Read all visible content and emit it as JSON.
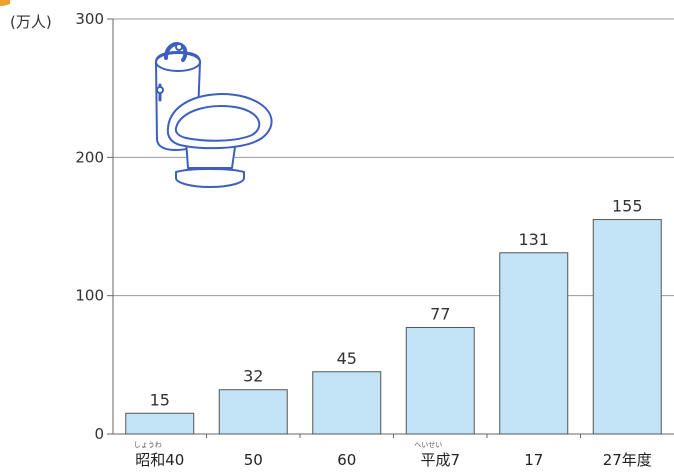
{
  "colors": {
    "bar_fill": "#c3e4f6",
    "bar_stroke": "#555555",
    "grid": "#999999",
    "axis": "#666666",
    "illustration_stroke": "#3d5fbf",
    "accent": "#f0a030"
  },
  "illustration": {
    "icon": "toilet-icon"
  },
  "chart_data": {
    "type": "bar",
    "unit_label": "(万人)",
    "categories": [
      "昭和40",
      "50",
      "60",
      "平成7",
      "17",
      "27年度"
    ],
    "category_ruby": [
      "しょうわ",
      "",
      "",
      "へいせい",
      "",
      ""
    ],
    "values": [
      15,
      32,
      45,
      77,
      131,
      155
    ],
    "value_labels": [
      "15",
      "32",
      "45",
      "77",
      "131",
      "155"
    ],
    "y_ticks": [
      0,
      100,
      200,
      300
    ],
    "y_tick_labels": [
      "0",
      "100",
      "200",
      "300"
    ],
    "ylim": [
      0,
      300
    ],
    "grid": true,
    "title": "",
    "xlabel": "",
    "ylabel": ""
  }
}
